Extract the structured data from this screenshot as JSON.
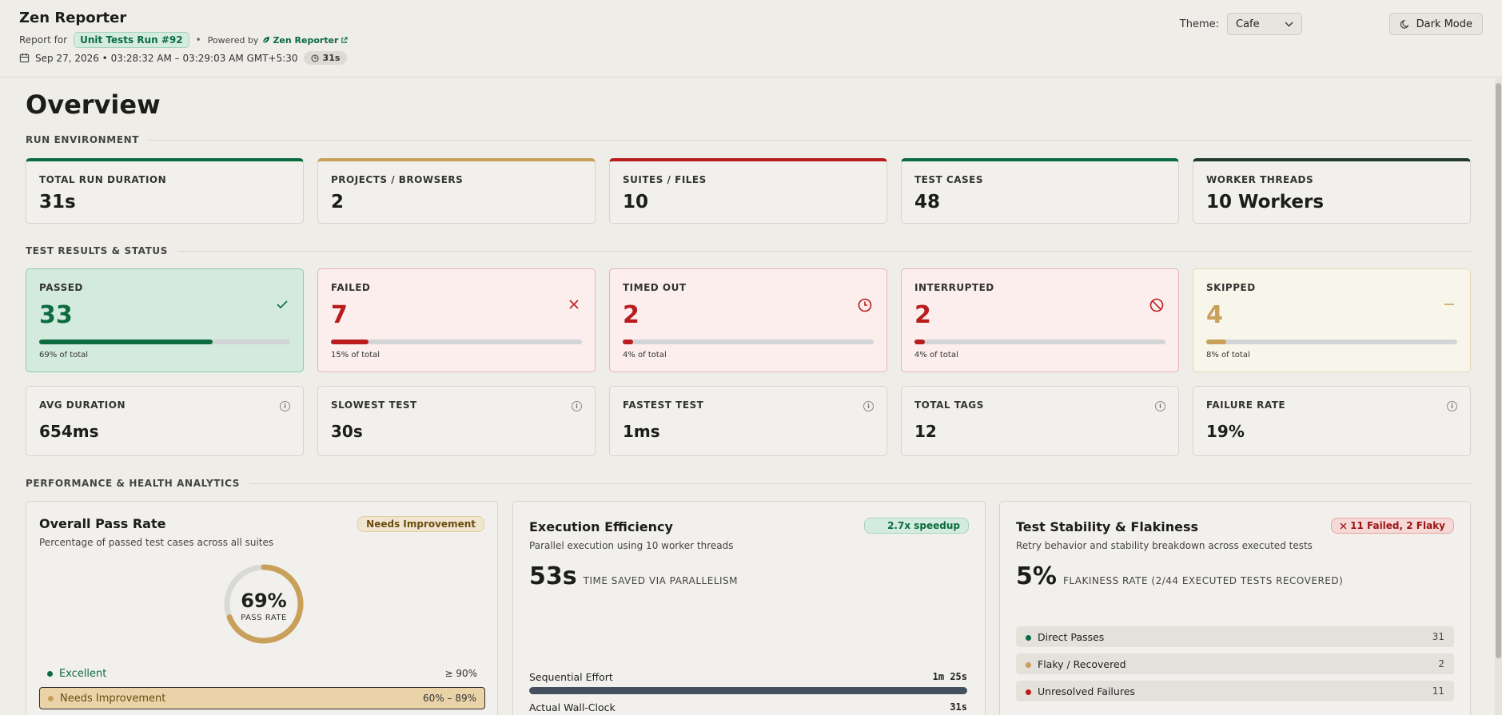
{
  "header": {
    "title": "Zen Reporter",
    "report_for": "Report for",
    "run_name": "Unit Tests Run #92",
    "separator": "•",
    "powered_by": "Powered by",
    "powered_link": "Zen Reporter",
    "date_range": "Sep 27, 2026 • 03:28:32 AM – 03:29:03 AM GMT+5:30",
    "duration": "31s",
    "theme_label": "Theme:",
    "theme_value": "Cafe",
    "dark_mode": "Dark Mode"
  },
  "overview": {
    "title": "Overview",
    "env_section": "RUN ENVIRONMENT",
    "env_cards": [
      {
        "label": "TOTAL RUN DURATION",
        "value": "31s",
        "color": "#0c6b3f"
      },
      {
        "label": "PROJECTS / BROWSERS",
        "value": "2",
        "color": "#c9a05a"
      },
      {
        "label": "SUITES / FILES",
        "value": "10",
        "color": "#b81c1c"
      },
      {
        "label": "TEST CASES",
        "value": "48",
        "color": "#0c6b3f"
      },
      {
        "label": "WORKER THREADS",
        "value": "10 Workers",
        "color": "#233a31"
      }
    ],
    "status_section": "TEST RESULTS & STATUS",
    "status_cards": [
      {
        "label": "PASSED",
        "value": "33",
        "pct": "69% of total",
        "fraction": 0.69,
        "color": "#0c6b3f",
        "bg": "#d3eadf",
        "border": "#8fcaaa",
        "icon": "check-icon"
      },
      {
        "label": "FAILED",
        "value": "7",
        "pct": "15% of total",
        "fraction": 0.15,
        "color": "#b81c1c",
        "bg": "#fbeeed",
        "border": "#e8b4b0",
        "icon": "x-icon"
      },
      {
        "label": "TIMED OUT",
        "value": "2",
        "pct": "4% of total",
        "fraction": 0.04,
        "color": "#b81c1c",
        "bg": "#fbeeed",
        "border": "#e8b4b0",
        "icon": "clock-icon"
      },
      {
        "label": "INTERRUPTED",
        "value": "2",
        "pct": "4% of total",
        "fraction": 0.04,
        "color": "#b81c1c",
        "bg": "#fbeeed",
        "border": "#e8b4b0",
        "icon": "ban-icon"
      },
      {
        "label": "SKIPPED",
        "value": "4",
        "pct": "8% of total",
        "fraction": 0.08,
        "color": "#c9a05a",
        "bg": "#f8f5ea",
        "border": "#e4d9b5",
        "icon": "minus-icon"
      }
    ],
    "metric_cards": [
      {
        "label": "AVG DURATION",
        "value": "654ms"
      },
      {
        "label": "SLOWEST TEST",
        "value": "30s"
      },
      {
        "label": "FASTEST TEST",
        "value": "1ms"
      },
      {
        "label": "TOTAL TAGS",
        "value": "12"
      },
      {
        "label": "FAILURE RATE",
        "value": "19%"
      }
    ],
    "analytics_section": "PERFORMANCE & HEALTH ANALYTICS"
  },
  "pass_rate": {
    "title": "Overall Pass Rate",
    "badge": "Needs Improvement",
    "subtitle": "Percentage of passed test cases across all suites",
    "value": "69%",
    "fraction": 0.69,
    "caption": "PASS RATE",
    "legend": [
      {
        "label": "Excellent",
        "range": "≥ 90%"
      },
      {
        "label": "Needs Improvement",
        "range": "60% – 89%"
      }
    ]
  },
  "efficiency": {
    "title": "Execution Efficiency",
    "badge": "2.7x speedup",
    "subtitle": "Parallel execution using 10 worker threads",
    "value": "53s",
    "value_text": "TIME SAVED VIA PARALLELISM",
    "sequential_label": "Sequential Effort",
    "sequential_value": "1m 25s",
    "wallclock_label": "Actual Wall-Clock",
    "wallclock_value": "31s"
  },
  "stability": {
    "title": "Test Stability & Flakiness",
    "badge": "11 Failed, 2 Flaky",
    "subtitle": "Retry behavior and stability breakdown across executed tests",
    "value": "5%",
    "value_text": "FLAKINESS RATE (2/44 EXECUTED TESTS RECOVERED)",
    "rows": [
      {
        "label": "Direct Passes",
        "count": "31",
        "color": "#0c6b3f"
      },
      {
        "label": "Flaky / Recovered",
        "count": "2",
        "color": "#c9a05a"
      },
      {
        "label": "Unresolved Failures",
        "count": "11",
        "color": "#b81c1c"
      }
    ]
  }
}
